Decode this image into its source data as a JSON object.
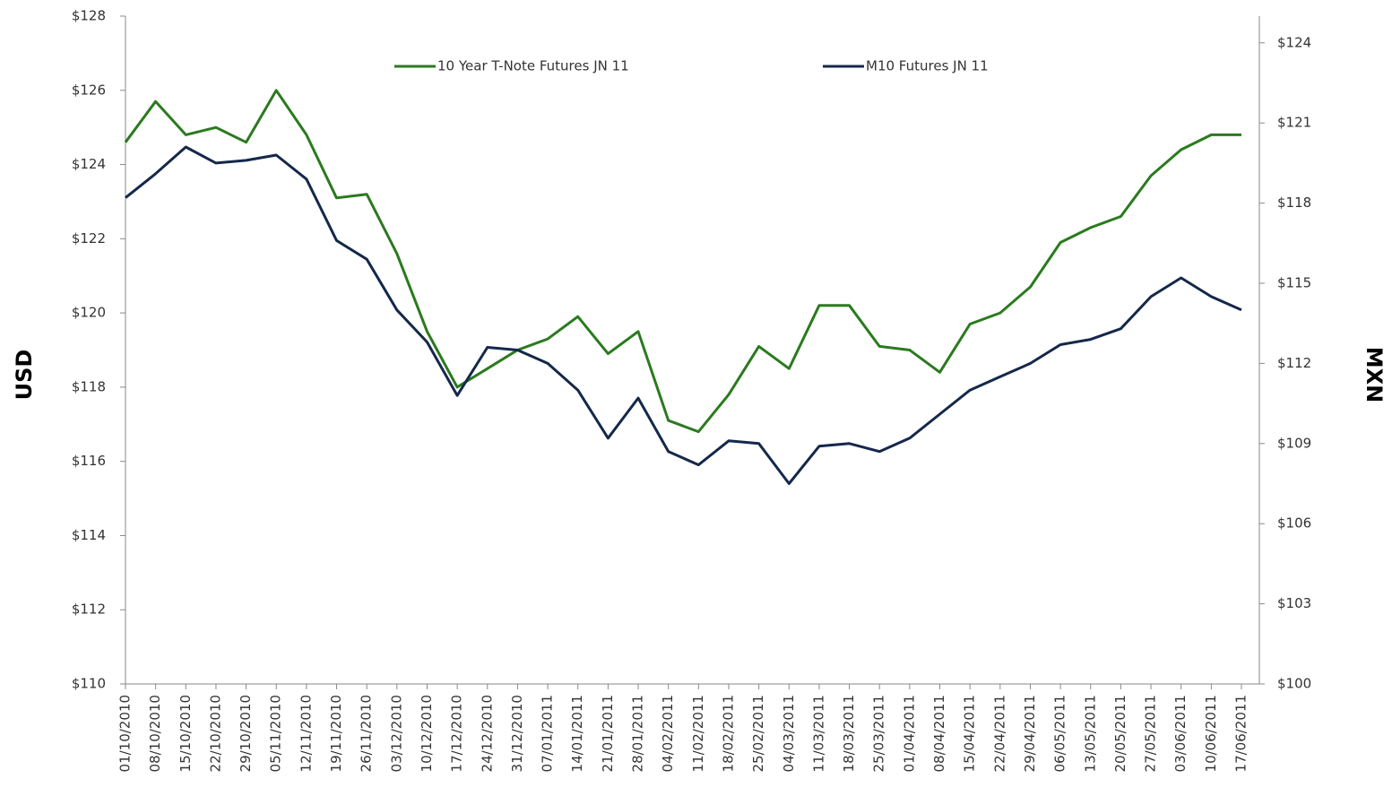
{
  "chart_data": {
    "type": "line",
    "y_axis_label": "USD",
    "y2_axis_label": "MXN",
    "categories": [
      "01/10/2010",
      "08/10/2010",
      "15/10/2010",
      "22/10/2010",
      "29/10/2010",
      "05/11/2010",
      "12/11/2010",
      "19/11/2010",
      "26/11/2010",
      "03/12/2010",
      "10/12/2010",
      "17/12/2010",
      "24/12/2010",
      "31/12/2010",
      "07/01/2011",
      "14/01/2011",
      "21/01/2011",
      "28/01/2011",
      "04/02/2011",
      "11/02/2011",
      "18/02/2011",
      "25/02/2011",
      "04/03/2011",
      "11/03/2011",
      "18/03/2011",
      "25/03/2011",
      "01/04/2011",
      "08/04/2011",
      "15/04/2011",
      "22/04/2011",
      "29/04/2011",
      "06/05/2011",
      "13/05/2011",
      "20/05/2011",
      "27/05/2011",
      "03/06/2011",
      "10/06/2011",
      "17/06/2011"
    ],
    "series": [
      {
        "name": "10 Year T-Note Futures JN 11",
        "color": "#2a7a1e",
        "values": [
          124.6,
          125.7,
          124.8,
          125.0,
          124.6,
          126.0,
          124.8,
          123.1,
          123.2,
          121.6,
          119.5,
          118.0,
          118.5,
          119.0,
          119.3,
          119.9,
          118.9,
          119.5,
          117.1,
          116.8,
          117.8,
          119.1,
          118.5,
          120.2,
          120.2,
          119.1,
          119.0,
          118.4,
          119.7,
          120.0,
          120.7,
          121.9,
          122.3,
          122.6,
          123.7,
          124.4,
          124.8,
          124.8
        ]
      },
      {
        "name": "M10 Futures JN 11",
        "color": "#14284b",
        "axis": "y2",
        "values": [
          118.2,
          119.1,
          120.1,
          119.5,
          119.6,
          119.8,
          118.9,
          116.6,
          115.9,
          114.0,
          112.8,
          110.8,
          112.6,
          112.5,
          112.0,
          111.0,
          109.2,
          110.7,
          108.7,
          108.2,
          109.1,
          109.0,
          107.5,
          108.9,
          109.0,
          108.7,
          109.2,
          110.1,
          111.0,
          111.5,
          112.0,
          112.7,
          112.9,
          113.3,
          114.5,
          115.2,
          114.5,
          114.0
        ]
      }
    ],
    "ylim": [
      110,
      128
    ],
    "yticks": [
      {
        "value": 110,
        "label": "$110"
      },
      {
        "value": 112,
        "label": "$112"
      },
      {
        "value": 114,
        "label": "$114"
      },
      {
        "value": 116,
        "label": "$116"
      },
      {
        "value": 118,
        "label": "$118"
      },
      {
        "value": 120,
        "label": "$120"
      },
      {
        "value": 122,
        "label": "$122"
      },
      {
        "value": 124,
        "label": "$124"
      },
      {
        "value": 126,
        "label": "$126"
      },
      {
        "value": 128,
        "label": "$128"
      }
    ],
    "y2lim": [
      100,
      125
    ],
    "y2ticks": [
      {
        "value": 100,
        "label": "$100"
      },
      {
        "value": 103,
        "label": "$103"
      },
      {
        "value": 106,
        "label": "$106"
      },
      {
        "value": 109,
        "label": "$109"
      },
      {
        "value": 112,
        "label": "$112"
      },
      {
        "value": 115,
        "label": "$115"
      },
      {
        "value": 118,
        "label": "$118"
      },
      {
        "value": 121,
        "label": "$121"
      },
      {
        "value": 124,
        "label": "$124"
      }
    ],
    "grid": false,
    "legend": "top"
  }
}
